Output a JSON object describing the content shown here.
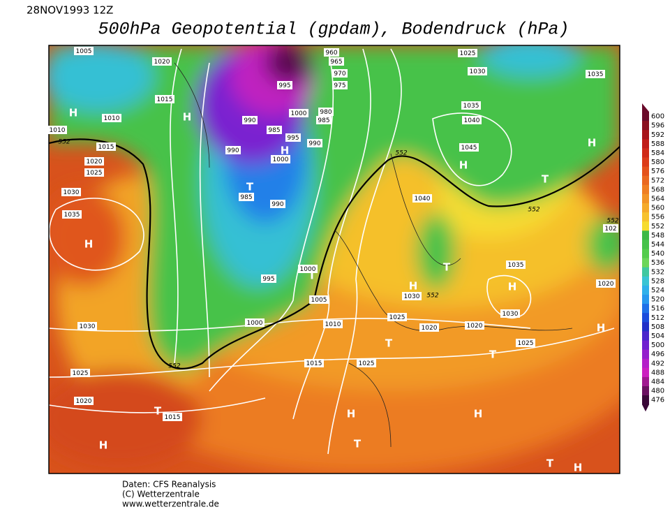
{
  "header": {
    "date": "28NOV1993 12Z",
    "title": "500hPa Geopotential (gpdam), Bodendruck (hPa)"
  },
  "colorbar": {
    "levels": [
      600,
      596,
      592,
      588,
      584,
      580,
      576,
      572,
      568,
      564,
      560,
      556,
      552,
      548,
      544,
      540,
      536,
      532,
      528,
      524,
      520,
      516,
      512,
      508,
      504,
      500,
      496,
      492,
      488,
      484,
      480,
      476
    ],
    "colors": [
      "#6a0a2a",
      "#8a0f1f",
      "#a8141a",
      "#c01c18",
      "#d02a18",
      "#dc3c1a",
      "#e4521c",
      "#ea6820",
      "#ef7e22",
      "#f29426",
      "#f5aa2a",
      "#f7c22e",
      "#f6dc30",
      "#3cb846",
      "#46c24a",
      "#54cc4c",
      "#6cd65a",
      "#40c8a0",
      "#3ac4d4",
      "#30b0ea",
      "#2898ee",
      "#2070e8",
      "#1c4cdc",
      "#2230c8",
      "#4a26cc",
      "#7020d0",
      "#9420cc",
      "#b420c8",
      "#cc20c0",
      "#a01890",
      "#6a1060",
      "#3a0838"
    ]
  },
  "map": {
    "isobar_labels": [
      "1005",
      "1020",
      "1015",
      "1010",
      "1010",
      "1015",
      "1020",
      "1025",
      "1030",
      "1035",
      "960",
      "965",
      "970",
      "975",
      "995",
      "1000",
      "980",
      "985",
      "990",
      "985",
      "995",
      "990",
      "990",
      "1000",
      "985",
      "990",
      "1025",
      "1030",
      "1035",
      "1035",
      "1040",
      "1045",
      "1040",
      "995",
      "1000",
      "1005",
      "1000",
      "1010",
      "1030",
      "1025",
      "1020",
      "1020",
      "1030",
      "1035",
      "1025",
      "1020",
      "1030",
      "1015",
      "1025",
      "1025",
      "1020",
      "1015",
      "102"
    ],
    "geopotential_labels": [
      "552",
      "552",
      "552",
      "552",
      "552",
      "552"
    ],
    "pressure_centers": [
      "H",
      "H",
      "H",
      "T",
      "H",
      "H",
      "H",
      "T",
      "T",
      "H",
      "T",
      "H",
      "H",
      "T",
      "T",
      "T",
      "H",
      "H",
      "T",
      "H",
      "T",
      "H"
    ]
  },
  "footer": {
    "lines": [
      "Daten: CFS Reanalysis",
      "(C) Wetterzentrale",
      "www.wetterzentrale.de"
    ]
  }
}
